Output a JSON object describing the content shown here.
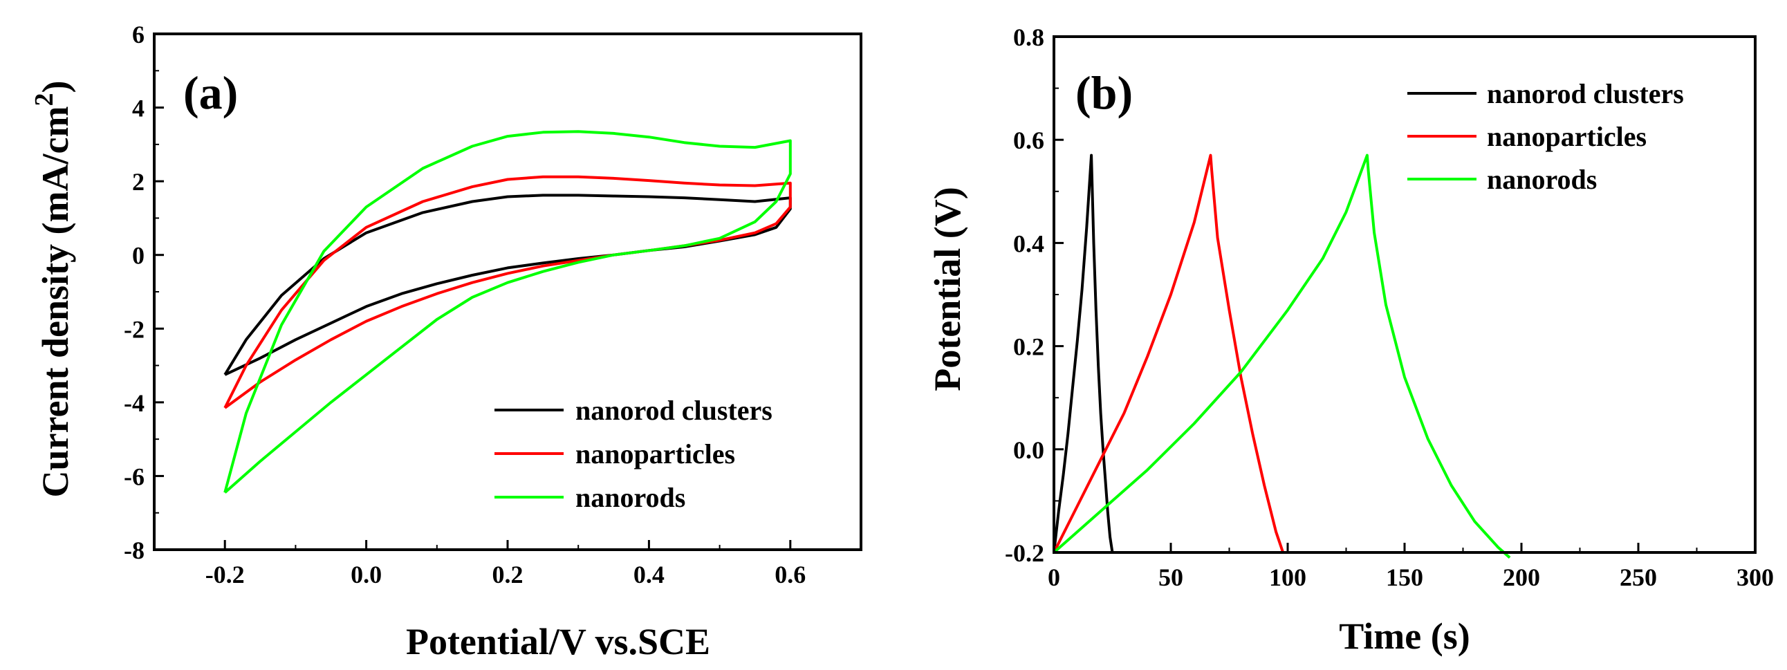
{
  "chart_data": [
    {
      "panel_label": "(a)",
      "type": "line",
      "title": "",
      "xlabel": "Potential/V vs.SCE",
      "ylabel_main": "Current density (mA/cm",
      "ylabel_sup": "2",
      "ylabel_close": ")",
      "xlim": [
        -0.3,
        0.7
      ],
      "ylim": [
        -8,
        6
      ],
      "xticks": [
        -0.2,
        0.0,
        0.2,
        0.4,
        0.6
      ],
      "xtick_labels": [
        "-0.2",
        "0.0",
        "0.2",
        "0.4",
        "0.6"
      ],
      "yticks": [
        -8,
        -6,
        -4,
        -2,
        0,
        2,
        4,
        6
      ],
      "ytick_labels": [
        "-8",
        "-6",
        "-4",
        "-2",
        "0",
        "2",
        "4",
        "6"
      ],
      "legend_position": "lower-right",
      "series": [
        {
          "name": "nanorod clusters",
          "color": "#000000",
          "x": [
            -0.2,
            -0.17,
            -0.12,
            -0.06,
            0.0,
            0.08,
            0.15,
            0.2,
            0.25,
            0.3,
            0.35,
            0.4,
            0.45,
            0.5,
            0.55,
            0.6,
            0.6,
            0.58,
            0.55,
            0.5,
            0.45,
            0.4,
            0.35,
            0.3,
            0.25,
            0.2,
            0.15,
            0.1,
            0.05,
            0.0,
            -0.05,
            -0.1,
            -0.15,
            -0.2
          ],
          "y": [
            -3.25,
            -2.3,
            -1.1,
            -0.1,
            0.6,
            1.15,
            1.45,
            1.58,
            1.62,
            1.62,
            1.6,
            1.58,
            1.55,
            1.5,
            1.45,
            1.55,
            1.25,
            0.75,
            0.55,
            0.38,
            0.22,
            0.12,
            0.0,
            -0.1,
            -0.22,
            -0.35,
            -0.55,
            -0.78,
            -1.05,
            -1.4,
            -1.85,
            -2.3,
            -2.8,
            -3.25
          ]
        },
        {
          "name": "nanoparticles",
          "color": "#ff0000",
          "x": [
            -0.2,
            -0.17,
            -0.12,
            -0.06,
            0.0,
            0.08,
            0.15,
            0.2,
            0.25,
            0.3,
            0.35,
            0.4,
            0.45,
            0.5,
            0.55,
            0.6,
            0.6,
            0.58,
            0.55,
            0.5,
            0.45,
            0.4,
            0.35,
            0.3,
            0.25,
            0.2,
            0.15,
            0.1,
            0.05,
            0.0,
            -0.05,
            -0.1,
            -0.15,
            -0.2
          ],
          "y": [
            -4.15,
            -3.0,
            -1.5,
            -0.15,
            0.75,
            1.45,
            1.85,
            2.05,
            2.12,
            2.12,
            2.08,
            2.02,
            1.95,
            1.9,
            1.88,
            1.95,
            1.3,
            0.85,
            0.6,
            0.4,
            0.25,
            0.12,
            0.0,
            -0.15,
            -0.3,
            -0.5,
            -0.75,
            -1.05,
            -1.4,
            -1.8,
            -2.3,
            -2.85,
            -3.45,
            -4.15
          ]
        },
        {
          "name": "nanorods",
          "color": "#00ff00",
          "x": [
            -0.2,
            -0.17,
            -0.12,
            -0.06,
            0.0,
            0.08,
            0.15,
            0.2,
            0.25,
            0.3,
            0.35,
            0.4,
            0.45,
            0.5,
            0.55,
            0.6,
            0.6,
            0.58,
            0.55,
            0.5,
            0.45,
            0.4,
            0.35,
            0.3,
            0.25,
            0.2,
            0.15,
            0.1,
            0.05,
            0.0,
            -0.05,
            -0.1,
            -0.15,
            -0.2
          ],
          "y": [
            -6.45,
            -4.3,
            -1.9,
            0.1,
            1.3,
            2.35,
            2.95,
            3.22,
            3.33,
            3.35,
            3.3,
            3.2,
            3.05,
            2.95,
            2.92,
            3.1,
            2.2,
            1.45,
            0.9,
            0.45,
            0.25,
            0.12,
            0.0,
            -0.2,
            -0.45,
            -0.75,
            -1.15,
            -1.75,
            -2.5,
            -3.25,
            -4.0,
            -4.8,
            -5.6,
            -6.45
          ]
        }
      ]
    },
    {
      "panel_label": "(b)",
      "type": "line",
      "title": "",
      "xlabel": "Time (s)",
      "ylabel": "Potential (V)",
      "xlim": [
        0,
        300
      ],
      "ylim": [
        -0.2,
        0.8
      ],
      "xticks": [
        0,
        50,
        100,
        150,
        200,
        250,
        300
      ],
      "xtick_labels": [
        "0",
        "50",
        "100",
        "150",
        "200",
        "250",
        "300"
      ],
      "yticks": [
        -0.2,
        0.0,
        0.2,
        0.4,
        0.6,
        0.8
      ],
      "ytick_labels": [
        "-0.2",
        "0.0",
        "0.2",
        "0.4",
        "0.6",
        "0.8"
      ],
      "legend_position": "top-right",
      "series": [
        {
          "name": "nanorod clusters",
          "color": "#000000",
          "x": [
            0,
            2,
            4,
            6,
            8,
            10,
            12,
            14,
            16,
            17,
            18,
            19,
            20,
            21,
            22,
            23,
            24,
            25
          ],
          "y": [
            -0.2,
            -0.12,
            -0.05,
            0.03,
            0.12,
            0.21,
            0.31,
            0.43,
            0.57,
            0.4,
            0.27,
            0.16,
            0.07,
            0.0,
            -0.06,
            -0.12,
            -0.17,
            -0.2
          ]
        },
        {
          "name": "nanoparticles",
          "color": "#ff0000",
          "x": [
            0,
            10,
            20,
            30,
            40,
            50,
            60,
            67,
            67.5,
            70,
            75,
            80,
            85,
            90,
            95,
            98
          ],
          "y": [
            -0.2,
            -0.11,
            -0.02,
            0.07,
            0.18,
            0.3,
            0.44,
            0.57,
            0.54,
            0.41,
            0.27,
            0.14,
            0.03,
            -0.07,
            -0.16,
            -0.2
          ]
        },
        {
          "name": "nanorods",
          "color": "#00ff00",
          "x": [
            0,
            20,
            40,
            60,
            80,
            100,
            115,
            125,
            134,
            134.5,
            137,
            142,
            150,
            160,
            170,
            180,
            190,
            195
          ],
          "y": [
            -0.2,
            -0.12,
            -0.04,
            0.05,
            0.15,
            0.27,
            0.37,
            0.46,
            0.57,
            0.54,
            0.42,
            0.28,
            0.14,
            0.02,
            -0.07,
            -0.14,
            -0.19,
            -0.21
          ]
        }
      ]
    }
  ]
}
